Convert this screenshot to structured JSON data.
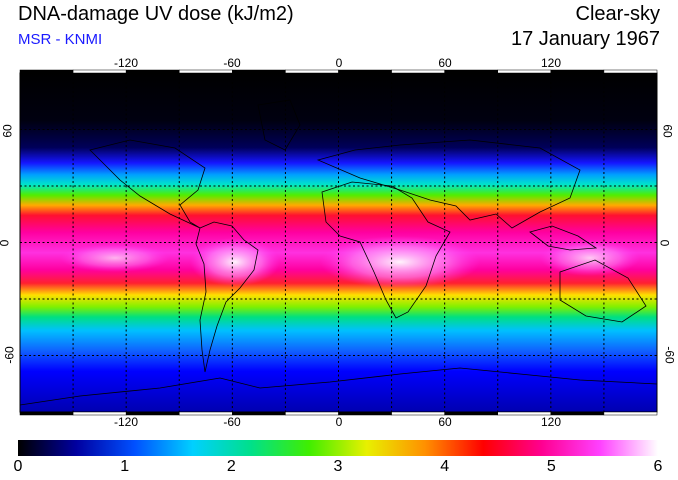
{
  "header": {
    "title": "DNA-damage UV dose (kJ/m2)",
    "subtitle": "MSR - KNMI",
    "sky_condition": "Clear-sky",
    "date": "17 January 1967"
  },
  "map": {
    "lon_range": [
      -180,
      180
    ],
    "lat_range": [
      -90,
      90
    ],
    "lon_ticks": [
      {
        "value": -120,
        "label": "-120"
      },
      {
        "value": -60,
        "label": "-60"
      },
      {
        "value": 0,
        "label": "0"
      },
      {
        "value": 60,
        "label": "60"
      },
      {
        "value": 120,
        "label": "120"
      }
    ],
    "lat_ticks": [
      {
        "value": 60,
        "label": "60"
      },
      {
        "value": 0,
        "label": "0"
      },
      {
        "value": -60,
        "label": "-60"
      }
    ],
    "grid_spacing_deg": 30,
    "grid": true
  },
  "colorbar": {
    "min": 0,
    "max": 6,
    "ticks": [
      {
        "value": 0,
        "label": "0"
      },
      {
        "value": 1,
        "label": "1"
      },
      {
        "value": 2,
        "label": "2"
      },
      {
        "value": 3,
        "label": "3"
      },
      {
        "value": 4,
        "label": "4"
      },
      {
        "value": 5,
        "label": "5"
      },
      {
        "value": 6,
        "label": "6"
      }
    ],
    "stops": [
      "#000000",
      "#0000a0",
      "#0050ff",
      "#00d0ff",
      "#00e08a",
      "#40ee00",
      "#e8f000",
      "#ff9000",
      "#ff0000",
      "#ff0090",
      "#ff40ff",
      "#ffffff"
    ]
  }
}
